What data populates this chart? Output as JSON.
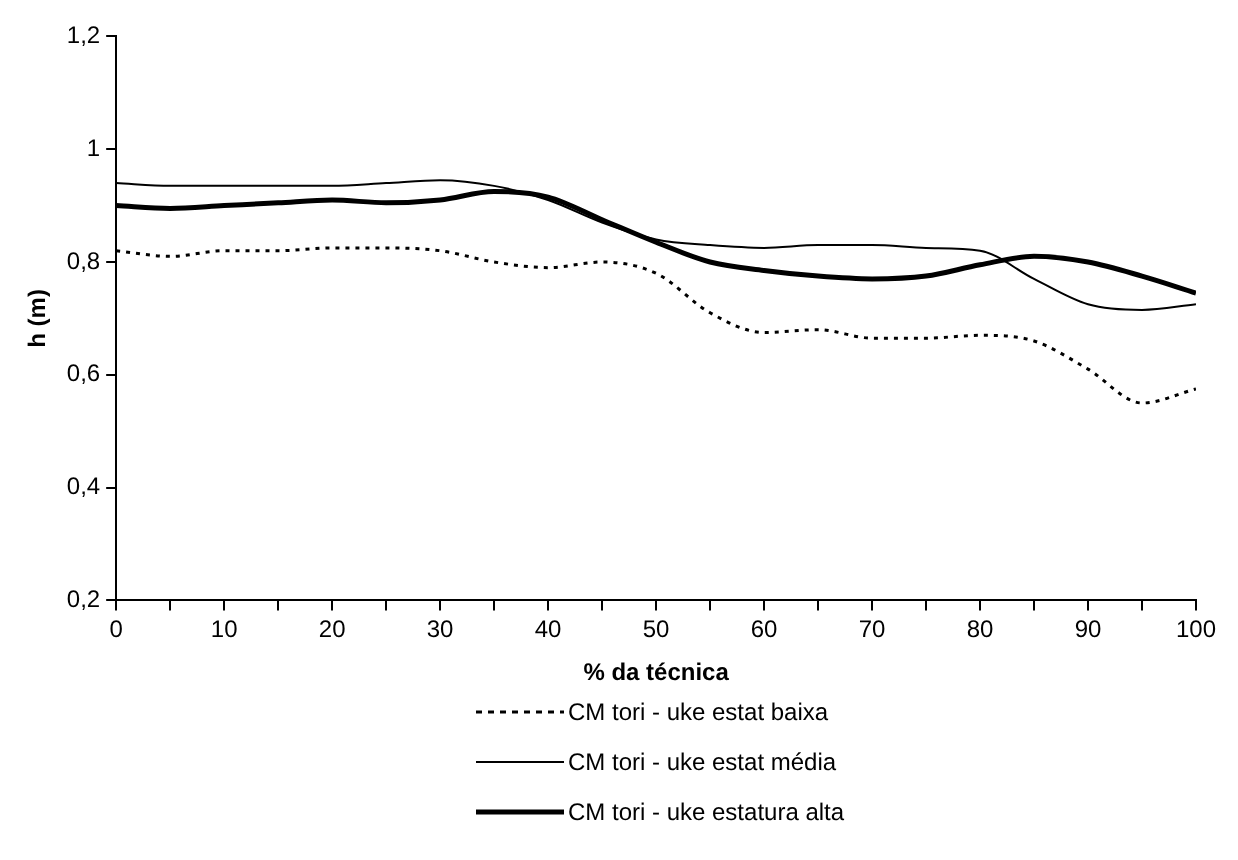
{
  "chart_data": {
    "type": "line",
    "xlabel": "% da técnica",
    "ylabel": "h (m)",
    "x": [
      0,
      5,
      10,
      15,
      20,
      25,
      30,
      35,
      40,
      45,
      50,
      55,
      60,
      65,
      70,
      75,
      80,
      85,
      90,
      95,
      100
    ],
    "series": [
      {
        "name": "CM tori - uke estat baixa",
        "color": "#000000",
        "line_style": "dotted",
        "values": [
          0.82,
          0.81,
          0.82,
          0.82,
          0.825,
          0.825,
          0.82,
          0.8,
          0.79,
          0.8,
          0.78,
          0.71,
          0.675,
          0.68,
          0.665,
          0.665,
          0.67,
          0.66,
          0.61,
          0.55,
          0.575
        ]
      },
      {
        "name": "CM tori - uke estat média",
        "color": "#000000",
        "line_style": "solid",
        "values": [
          0.94,
          0.935,
          0.935,
          0.935,
          0.935,
          0.94,
          0.945,
          0.935,
          0.91,
          0.87,
          0.84,
          0.83,
          0.825,
          0.83,
          0.83,
          0.825,
          0.82,
          0.77,
          0.725,
          0.715,
          0.725
        ]
      },
      {
        "name": "CM tori - uke estatura alta",
        "color": "#000000",
        "line_style": "solid",
        "values": [
          0.9,
          0.895,
          0.9,
          0.905,
          0.91,
          0.905,
          0.91,
          0.925,
          0.915,
          0.875,
          0.835,
          0.8,
          0.785,
          0.775,
          0.77,
          0.775,
          0.795,
          0.81,
          0.8,
          0.775,
          0.745
        ]
      }
    ],
    "xlim": [
      0,
      100
    ],
    "xticks": [
      0,
      {
        "value": 5,
        "label": null
      },
      10,
      {
        "value": 15,
        "label": null
      },
      20,
      {
        "value": 25,
        "label": null
      },
      30,
      {
        "value": 35,
        "label": null
      },
      40,
      {
        "value": 45,
        "label": null
      },
      50,
      {
        "value": 55,
        "label": null
      },
      60,
      {
        "value": 65,
        "label": null
      },
      70,
      {
        "value": 75,
        "label": null
      },
      80,
      {
        "value": 85,
        "label": null
      },
      90,
      {
        "value": 95,
        "label": null
      },
      100
    ],
    "ylim": [
      0.2,
      1.2
    ],
    "yticks": [
      {
        "value": 0.2,
        "label": "0,2"
      },
      {
        "value": 0.4,
        "label": "0,4"
      },
      {
        "value": 0.6,
        "label": "0,6"
      },
      {
        "value": 0.8,
        "label": "0,8"
      },
      {
        "value": 1,
        "label": "1"
      },
      {
        "value": 1.2,
        "label": "1,2"
      }
    ],
    "grid": false,
    "legend": "bottom",
    "marker": "none"
  }
}
